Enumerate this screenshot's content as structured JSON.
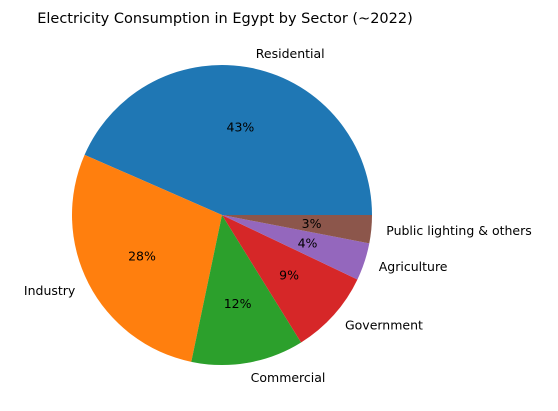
{
  "chart_data": {
    "type": "pie",
    "title": "Electricity Consumption in Egypt by Sector (~2022)",
    "slices": [
      {
        "label": "Residential",
        "value": 43,
        "pct_label": "43%",
        "color": "#1f77b4"
      },
      {
        "label": "Industry",
        "value": 28,
        "pct_label": "28%",
        "color": "#ff7f0e"
      },
      {
        "label": "Commercial",
        "value": 12,
        "pct_label": "12%",
        "color": "#2ca02c"
      },
      {
        "label": "Government",
        "value": 9,
        "pct_label": "9%",
        "color": "#d62728"
      },
      {
        "label": "Agriculture",
        "value": 4,
        "pct_label": "4%",
        "color": "#9467bd"
      },
      {
        "label": "Public lighting & others",
        "value": 3,
        "pct_label": "3%",
        "color": "#8c564b"
      }
    ],
    "start_angle_deg": 0,
    "direction": "counterclockwise"
  }
}
